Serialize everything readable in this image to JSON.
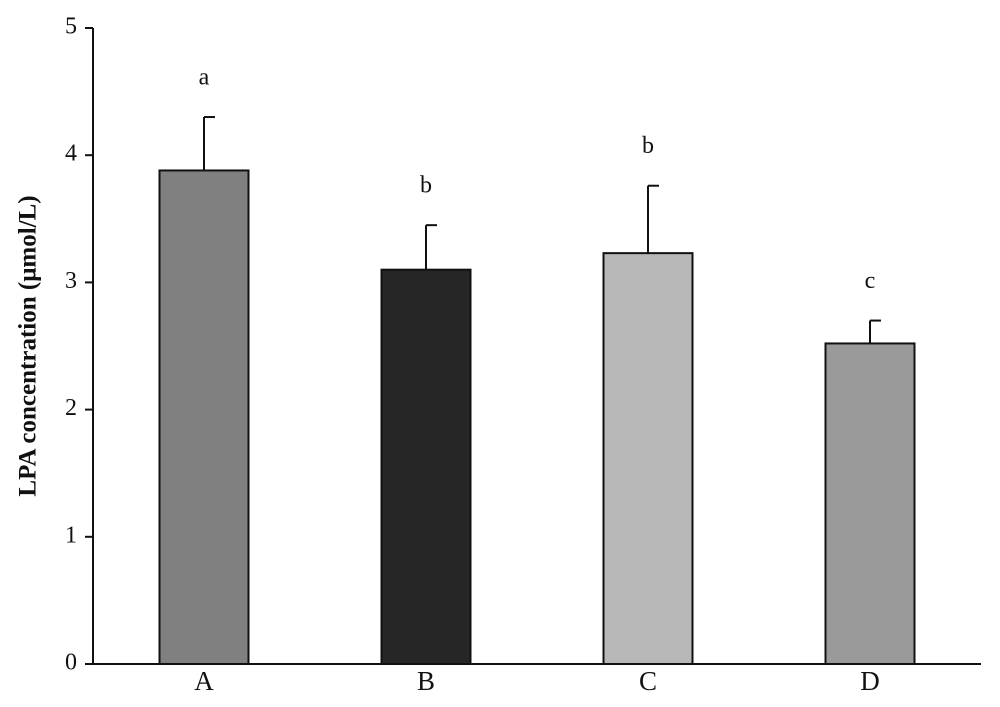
{
  "chart_data": {
    "type": "bar",
    "y_label": "LPA  concentration  (μmol/L)",
    "categories": [
      "A",
      "B",
      "C",
      "D"
    ],
    "values": [
      3.88,
      3.1,
      3.23,
      2.52
    ],
    "errors": [
      0.42,
      0.35,
      0.53,
      0.18
    ],
    "significance": [
      "a",
      "b",
      "b",
      "c"
    ],
    "colors": [
      "#808080",
      "#262626",
      "#b8b8b8",
      "#9a9a9a"
    ],
    "ylim": [
      0,
      5
    ],
    "yticks": [
      0,
      1,
      2,
      3,
      4,
      5
    ]
  }
}
